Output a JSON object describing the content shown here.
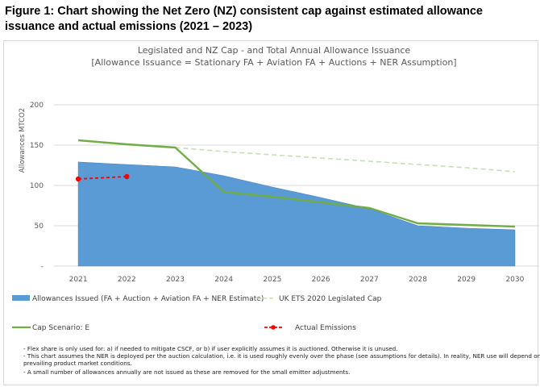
{
  "figure_title": "Figure 1: Chart showing the Net Zero (NZ) consistent cap against estimated allowance issuance and actual emissions (2021 – 2023)",
  "chart_data": {
    "type": "area",
    "title": "Legislated and NZ Cap - and Total Annual Allowance Issuance",
    "subtitle": "[Allowance Issuance = Stationary FA + Aviation FA + Auctions + NER Assumption]",
    "ylabel": "Allowances MTCO2",
    "xlabel": "",
    "categories": [
      "2021",
      "2022",
      "2023",
      "2024",
      "2025",
      "2026",
      "2027",
      "2028",
      "2029",
      "2030"
    ],
    "ylim": [
      0,
      200
    ],
    "yticks": [
      0,
      50,
      100,
      150,
      200
    ],
    "ytick_labels": [
      "-",
      "50",
      "100",
      "150",
      "200"
    ],
    "grid": true,
    "legend_position": "bottom",
    "series": [
      {
        "name": "Allowances Issued (FA + Auction + Aviation FA + NER Estimate)",
        "kind": "area",
        "color": "#5b9bd5",
        "values": [
          129,
          126,
          123,
          112,
          98,
          85,
          71,
          50,
          47,
          45
        ]
      },
      {
        "name": "UK ETS 2020 Legislated Cap",
        "kind": "dashed-line",
        "color": "#c5e0b4",
        "values": [
          null,
          null,
          147,
          142,
          138,
          134,
          130,
          126,
          122,
          117
        ]
      },
      {
        "name": "Cap Scenario: E",
        "kind": "line",
        "color": "#70ad47",
        "values": [
          156,
          151,
          147,
          92,
          86,
          79,
          72,
          53,
          51,
          49
        ]
      },
      {
        "name": "Actual Emissions",
        "kind": "dashed-marker",
        "color": "#ff0000",
        "values": [
          108,
          111,
          null,
          null,
          null,
          null,
          null,
          null,
          null,
          null
        ]
      }
    ]
  },
  "notes": [
    "- Flex share is only used for: a) if needed to mitigate CSCF, or b) if user explicitly assumes it is auctioned. Otherwise it is unused.",
    "- This chart assumes the NER is deployed per the auction calculation, i.e. it is used roughly evenly over the phase (see assumptions for details). In reality, NER use will depend on",
    "prevailing product market conditions.",
    "- A small number of allowances annually are not issued as these are removed for the small emitter adjustments."
  ]
}
